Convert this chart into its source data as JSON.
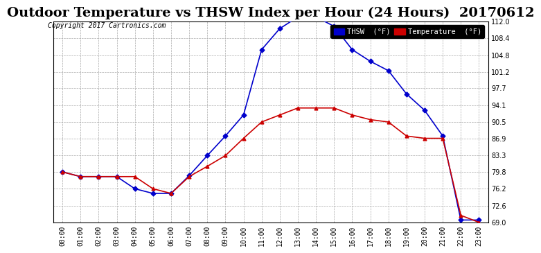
{
  "title": "Outdoor Temperature vs THSW Index per Hour (24 Hours)  20170612",
  "copyright": "Copyright 2017 Cartronics.com",
  "hours": [
    "00:00",
    "01:00",
    "02:00",
    "03:00",
    "04:00",
    "05:00",
    "06:00",
    "07:00",
    "08:00",
    "09:00",
    "10:00",
    "11:00",
    "12:00",
    "13:00",
    "14:00",
    "15:00",
    "16:00",
    "17:00",
    "18:00",
    "19:00",
    "20:00",
    "21:00",
    "22:00",
    "23:00"
  ],
  "thsw": [
    79.8,
    78.8,
    78.8,
    78.8,
    76.2,
    75.2,
    75.2,
    79.0,
    83.3,
    87.5,
    92.0,
    106.0,
    110.5,
    113.0,
    113.0,
    111.0,
    106.0,
    103.5,
    101.5,
    96.5,
    93.0,
    87.5,
    69.5,
    69.5
  ],
  "temperature": [
    79.8,
    78.8,
    78.8,
    78.8,
    78.8,
    76.2,
    75.2,
    78.8,
    81.0,
    83.3,
    87.0,
    90.5,
    92.0,
    93.5,
    93.5,
    93.5,
    92.0,
    91.0,
    90.5,
    87.5,
    87.0,
    87.0,
    70.5,
    69.0
  ],
  "ylim_min": 69.0,
  "ylim_max": 112.0,
  "yticks": [
    69.0,
    72.6,
    76.2,
    79.8,
    83.3,
    86.9,
    90.5,
    94.1,
    97.7,
    101.2,
    104.8,
    108.4,
    112.0
  ],
  "thsw_color": "#0000cc",
  "temp_color": "#cc0000",
  "bg_color": "#ffffff",
  "plot_bg_color": "#ffffff",
  "grid_color": "#aaaaaa",
  "title_fontsize": 14,
  "legend_thsw_label": "THSW  (°F)",
  "legend_temp_label": "Temperature  (°F)",
  "thsw_legend_bg": "#0000cc",
  "temp_legend_bg": "#cc0000"
}
